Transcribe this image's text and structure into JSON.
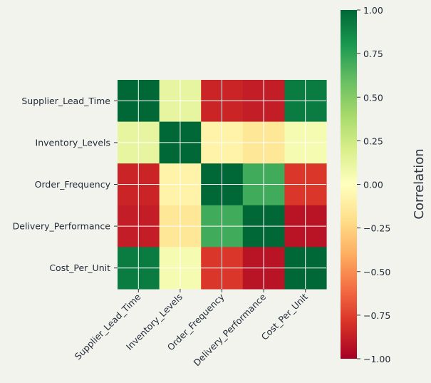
{
  "chart_data": {
    "type": "heatmap",
    "title": "",
    "row_labels": [
      "Supplier_Lead_Time",
      "Inventory_Levels",
      "Order_Frequency",
      "Delivery_Performance",
      "Cost_Per_Unit"
    ],
    "col_labels": [
      "Supplier_Lead_Time",
      "Inventory_Levels",
      "Order_Frequency",
      "Delivery_Performance",
      "Cost_Per_Unit"
    ],
    "values": [
      [
        1.0,
        0.12,
        -0.85,
        -0.88,
        0.92
      ],
      [
        0.12,
        1.0,
        -0.08,
        -0.15,
        0.05
      ],
      [
        -0.85,
        -0.08,
        1.0,
        0.7,
        -0.78
      ],
      [
        -0.88,
        -0.15,
        0.7,
        1.0,
        -0.92
      ],
      [
        0.92,
        0.05,
        -0.78,
        -0.92,
        1.0
      ]
    ],
    "colormap": "RdYlGn",
    "vmin": -1.0,
    "vmax": 1.0,
    "colorbar": {
      "label": "Correlation",
      "ticks": [
        "1.00",
        "0.75",
        "0.50",
        "0.25",
        "0.00",
        "−0.25",
        "−0.50",
        "−0.75",
        "−1.00"
      ],
      "tick_values": [
        1.0,
        0.75,
        0.5,
        0.25,
        0.0,
        -0.25,
        -0.5,
        -0.75,
        -1.0
      ]
    },
    "grid": true
  }
}
